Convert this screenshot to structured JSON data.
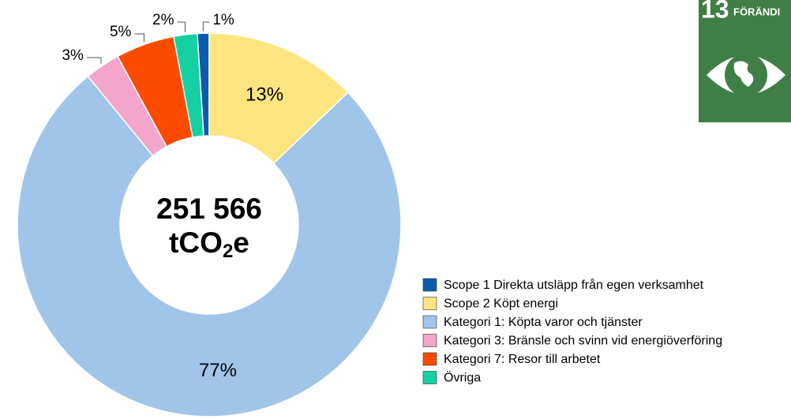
{
  "chart_data": {
    "type": "donut",
    "categories": [
      "Scope 1 Direkta utsläpp från egen verksamhet",
      "Scope 2 Köpt energi",
      "Kategori 1: Köpta varor och tjänster",
      "Kategori 3: Bränsle och svinn vid energiöverföring",
      "Kategori 7: Resor till arbetet",
      "Övriga"
    ],
    "values": [
      1,
      13,
      77,
      3,
      5,
      2
    ],
    "value_labels": [
      "1%",
      "13%",
      "77%",
      "3%",
      "5%",
      "2%"
    ],
    "colors": [
      "#0b5cad",
      "#ffe57f",
      "#a0c5e8",
      "#f4a5cb",
      "#fa4b00",
      "#14d0a2"
    ],
    "center_label": {
      "line1": "251 566",
      "line2": [
        "tCO",
        "2",
        "e"
      ]
    },
    "legend": "bottom-right"
  },
  "logo": {
    "number": "13",
    "text": "FÖRÄNDI"
  }
}
